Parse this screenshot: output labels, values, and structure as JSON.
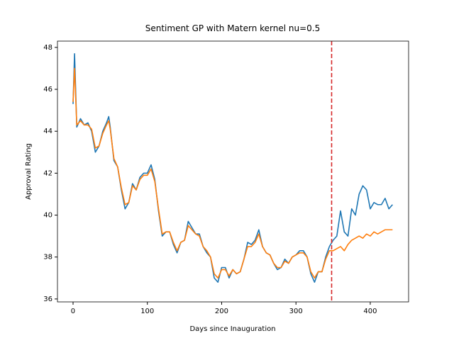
{
  "chart_data": {
    "type": "line",
    "title": "Sentiment GP with Matern kernel nu=0.5",
    "xlabel": "Days since Inauguration",
    "ylabel": "Approval Rating",
    "x": [
      0,
      2,
      5,
      10,
      15,
      20,
      25,
      30,
      35,
      40,
      45,
      48,
      50,
      55,
      60,
      65,
      70,
      75,
      80,
      85,
      90,
      95,
      100,
      105,
      110,
      115,
      120,
      125,
      130,
      135,
      140,
      145,
      150,
      155,
      160,
      165,
      170,
      175,
      180,
      185,
      190,
      195,
      200,
      205,
      210,
      215,
      220,
      225,
      230,
      235,
      240,
      245,
      250,
      255,
      260,
      265,
      270,
      275,
      280,
      285,
      290,
      295,
      300,
      305,
      310,
      315,
      320,
      325,
      330,
      335,
      340,
      345,
      350,
      355,
      360,
      365,
      370,
      375,
      380,
      385,
      390,
      395,
      400,
      405,
      410,
      415,
      420,
      425,
      430
    ],
    "series": [
      {
        "color": "#1f77b4",
        "values": [
          45.3,
          47.7,
          44.2,
          44.6,
          44.3,
          44.4,
          44.0,
          43.0,
          43.3,
          44.0,
          44.4,
          44.7,
          44.2,
          42.6,
          42.3,
          41.2,
          40.3,
          40.6,
          41.5,
          41.2,
          41.8,
          42.0,
          42.0,
          42.4,
          41.7,
          40.2,
          39.0,
          39.2,
          39.2,
          38.6,
          38.2,
          38.7,
          38.8,
          39.7,
          39.4,
          39.1,
          39.1,
          38.5,
          38.2,
          38.0,
          37.0,
          36.8,
          37.5,
          37.5,
          37.0,
          37.4,
          37.2,
          37.3,
          37.9,
          38.7,
          38.6,
          38.8,
          39.3,
          38.5,
          38.2,
          38.1,
          37.7,
          37.4,
          37.5,
          37.9,
          37.7,
          38.0,
          38.1,
          38.3,
          38.3,
          38.0,
          37.2,
          36.8,
          37.3,
          37.3,
          38.0,
          38.5,
          38.8,
          39.0,
          40.2,
          39.2,
          39.0,
          40.3,
          40.0,
          41.0,
          41.4,
          41.2,
          40.3,
          40.6,
          40.5,
          40.5,
          40.8,
          40.3,
          40.5
        ]
      },
      {
        "color": "#ff7f0e",
        "values": [
          45.4,
          47.0,
          44.3,
          44.5,
          44.3,
          44.3,
          44.1,
          43.2,
          43.3,
          43.9,
          44.3,
          44.5,
          44.1,
          42.7,
          42.3,
          41.3,
          40.5,
          40.6,
          41.4,
          41.2,
          41.7,
          41.9,
          41.9,
          42.2,
          41.6,
          40.3,
          39.1,
          39.2,
          39.2,
          38.7,
          38.3,
          38.7,
          38.8,
          39.5,
          39.3,
          39.1,
          39.0,
          38.5,
          38.3,
          38.0,
          37.2,
          37.0,
          37.4,
          37.4,
          37.1,
          37.4,
          37.2,
          37.3,
          37.9,
          38.5,
          38.5,
          38.7,
          39.1,
          38.5,
          38.2,
          38.1,
          37.7,
          37.5,
          37.5,
          37.8,
          37.7,
          38.0,
          38.1,
          38.2,
          38.2,
          38.0,
          37.3,
          37.0,
          37.3,
          37.3,
          37.9,
          38.3,
          38.3,
          38.4,
          38.5,
          38.3,
          38.6,
          38.8,
          38.9,
          39.0,
          38.9,
          39.1,
          39.0,
          39.2,
          39.1,
          39.2,
          39.3,
          39.3,
          39.3
        ]
      }
    ],
    "vline": {
      "x": 348,
      "color": "#d62728"
    },
    "xlim": [
      -21,
      451.6
    ],
    "ylim": [
      35.86,
      48.3
    ],
    "xticks": [
      0,
      100,
      200,
      300,
      400
    ],
    "yticks": [
      36,
      38,
      40,
      42,
      44,
      46,
      48
    ]
  }
}
